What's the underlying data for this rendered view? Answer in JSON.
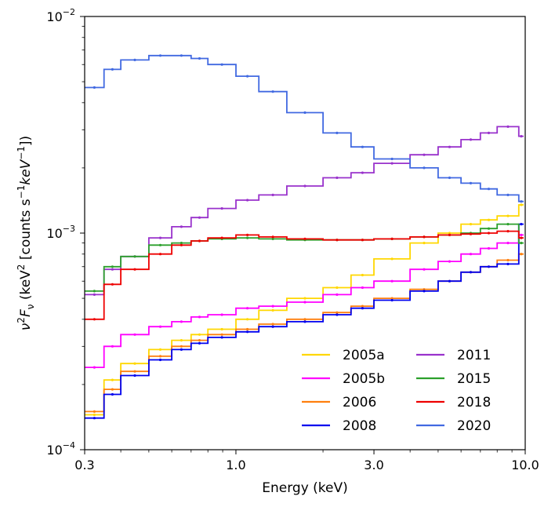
{
  "chart_data": {
    "type": "line",
    "title": "",
    "xlabel": "Energy (keV)",
    "ylabel_parts": [
      "ν",
      "2",
      "F",
      "ν",
      " (keV",
      "2",
      " [counts s",
      "−1",
      "keV",
      "−1",
      "])"
    ],
    "xscale": "log",
    "yscale": "log",
    "xlim": [
      0.3,
      10.0
    ],
    "ylim": [
      0.0001,
      0.01
    ],
    "xticks": [
      {
        "value": 0.3,
        "label": "0.3"
      },
      {
        "value": 1.0,
        "label": "1.0"
      },
      {
        "value": 3.0,
        "label": "3.0"
      },
      {
        "value": 10.0,
        "label": "10.0"
      }
    ],
    "yticks": [
      {
        "value": 0.0001,
        "base": "10",
        "exp": "−4"
      },
      {
        "value": 0.001,
        "base": "10",
        "exp": "−3"
      },
      {
        "value": 0.01,
        "base": "10",
        "exp": "−2"
      }
    ],
    "grid": false,
    "legend_position": "bottom-right",
    "legend_columns": 2,
    "x": [
      0.3,
      0.35,
      0.4,
      0.5,
      0.6,
      0.7,
      0.8,
      1.0,
      1.2,
      1.5,
      2.0,
      2.5,
      3.0,
      4.0,
      5.0,
      6.0,
      7.0,
      8.0,
      9.5
    ],
    "series": [
      {
        "name": "2005a",
        "color": "#FFD700",
        "values": [
          0.000145,
          0.00021,
          0.00025,
          0.00029,
          0.00032,
          0.00034,
          0.00036,
          0.0004,
          0.00044,
          0.0005,
          0.00056,
          0.00064,
          0.00076,
          0.0009,
          0.001,
          0.0011,
          0.00115,
          0.0012,
          0.00135
        ]
      },
      {
        "name": "2005b",
        "color": "#FF00FF",
        "values": [
          0.00024,
          0.0003,
          0.00034,
          0.00037,
          0.00039,
          0.00041,
          0.00042,
          0.00045,
          0.00046,
          0.00048,
          0.00052,
          0.00056,
          0.0006,
          0.00068,
          0.00074,
          0.0008,
          0.00085,
          0.0009,
          0.00098
        ]
      },
      {
        "name": "2006",
        "color": "#FF7F0E",
        "values": [
          0.00015,
          0.00019,
          0.00023,
          0.00027,
          0.0003,
          0.00032,
          0.00034,
          0.00036,
          0.00038,
          0.0004,
          0.00043,
          0.00046,
          0.0005,
          0.00055,
          0.0006,
          0.00066,
          0.0007,
          0.00075,
          0.0008
        ]
      },
      {
        "name": "2008",
        "color": "#0000EE",
        "values": [
          0.00014,
          0.00018,
          0.00022,
          0.00026,
          0.00029,
          0.00031,
          0.00033,
          0.00035,
          0.00037,
          0.00039,
          0.00042,
          0.00045,
          0.00049,
          0.00054,
          0.0006,
          0.00066,
          0.0007,
          0.00072,
          0.0011
        ]
      },
      {
        "name": "2011",
        "color": "#9932CC",
        "values": [
          0.00052,
          0.00068,
          0.00078,
          0.00095,
          0.00107,
          0.00118,
          0.0013,
          0.00142,
          0.0015,
          0.00165,
          0.0018,
          0.0019,
          0.0021,
          0.0023,
          0.0025,
          0.0027,
          0.0029,
          0.0031,
          0.0028
        ]
      },
      {
        "name": "2015",
        "color": "#2CA02C",
        "values": [
          0.00054,
          0.0007,
          0.00078,
          0.00088,
          0.0009,
          0.00092,
          0.00094,
          0.00095,
          0.00094,
          0.00093,
          0.00093,
          0.00093,
          0.00094,
          0.00096,
          0.00098,
          0.001,
          0.00105,
          0.0011,
          0.0009
        ]
      },
      {
        "name": "2018",
        "color": "#EE0000",
        "values": [
          0.0004,
          0.00058,
          0.00068,
          0.0008,
          0.00088,
          0.00092,
          0.00095,
          0.00098,
          0.00096,
          0.00094,
          0.00093,
          0.00093,
          0.00094,
          0.00096,
          0.00098,
          0.00099,
          0.001,
          0.00102,
          0.00095
        ]
      },
      {
        "name": "2020",
        "color": "#4169E1",
        "values": [
          0.0047,
          0.0057,
          0.0063,
          0.0066,
          0.0066,
          0.0064,
          0.006,
          0.0053,
          0.0045,
          0.0036,
          0.0029,
          0.0025,
          0.0022,
          0.002,
          0.0018,
          0.0017,
          0.0016,
          0.0015,
          0.0014
        ]
      }
    ]
  }
}
